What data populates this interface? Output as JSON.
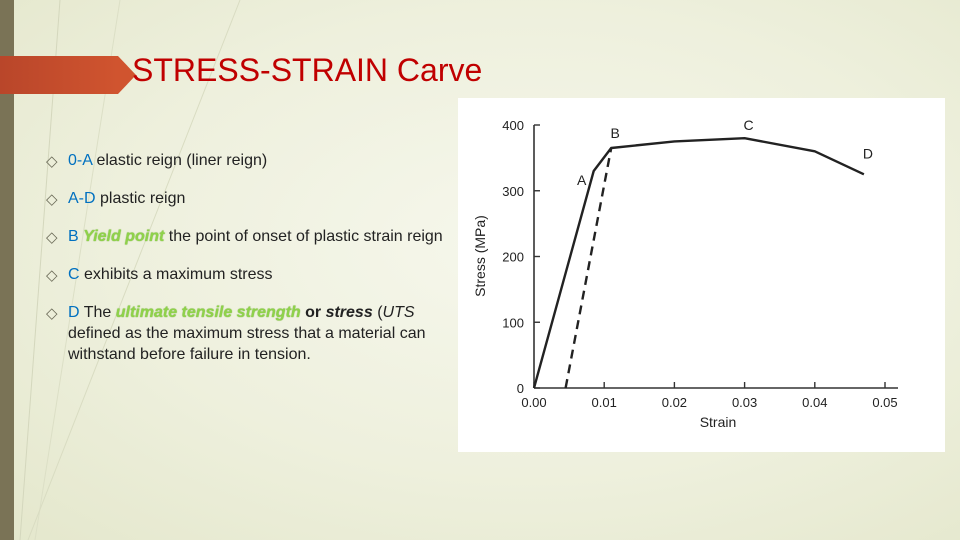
{
  "slide": {
    "title": "STRESS-STRAIN Carve",
    "bullets": [
      {
        "key": "0-A",
        "text": "elastic reign (liner reign)"
      },
      {
        "key": "A-D",
        "text": "plastic reign"
      },
      {
        "key": "B",
        "term": "Yield point",
        "text": "the point of onset of plastic strain reign"
      },
      {
        "key": "C",
        "text": "exhibits a maximum stress"
      },
      {
        "key": "D",
        "prefix": "The",
        "term": "ultimate tensile strength",
        "or": "or",
        "term2": "stress",
        "abbr_open": "(",
        "abbr": "UTS",
        "text": "defined as the maximum stress that a material can withstand before failure in tension."
      }
    ]
  },
  "colors": {
    "title": "#c00000",
    "key": "#0070c0",
    "term": "#8fd24a",
    "accent_bar": "#c94f2d"
  },
  "chart_data": {
    "type": "line",
    "xlabel": "Strain",
    "ylabel": "Stress (MPa)",
    "xlim": [
      0,
      0.05
    ],
    "ylim": [
      0,
      400
    ],
    "x_ticks": [
      "0.00",
      "0.01",
      "0.02",
      "0.03",
      "0.04",
      "0.05"
    ],
    "y_ticks": [
      "0",
      "100",
      "200",
      "300",
      "400"
    ],
    "grid": false,
    "series": [
      {
        "style": "solid",
        "points": [
          [
            0,
            0
          ],
          [
            0.0085,
            330
          ],
          [
            0.011,
            365
          ],
          [
            0.02,
            375
          ],
          [
            0.03,
            380
          ],
          [
            0.04,
            360
          ],
          [
            0.047,
            325
          ]
        ]
      },
      {
        "style": "dashed",
        "points": [
          [
            0.0045,
            0
          ],
          [
            0.011,
            365
          ]
        ]
      }
    ],
    "annotations": [
      {
        "label": "A",
        "x": 0.0085,
        "y": 330
      },
      {
        "label": "B",
        "x": 0.011,
        "y": 365
      },
      {
        "label": "C",
        "x": 0.03,
        "y": 380
      },
      {
        "label": "D",
        "x": 0.047,
        "y": 325
      }
    ]
  }
}
